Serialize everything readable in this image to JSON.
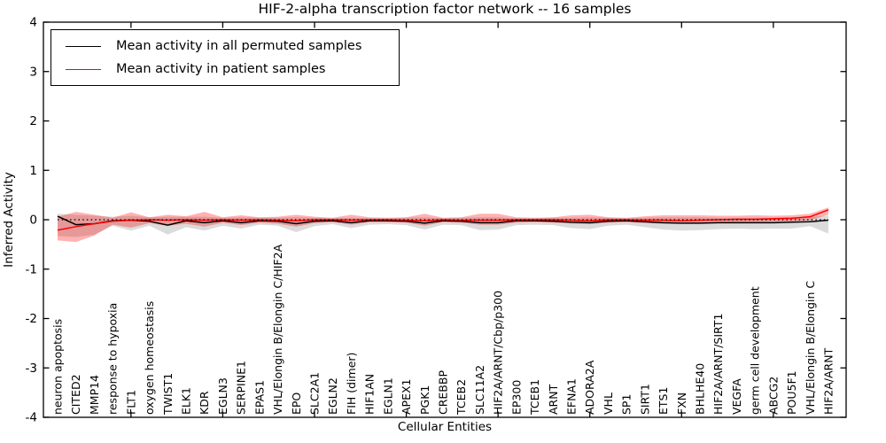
{
  "figure": {
    "title": "HIF-2-alpha transcription factor network -- 16 samples",
    "xlabel": "Cellular Entities",
    "ylabel": "Inferred Activity"
  },
  "legend": {
    "items": [
      {
        "label": "Mean activity in all permuted samples",
        "color": "#000000"
      },
      {
        "label": "Mean activity in patient samples",
        "color": "#ff0000"
      }
    ]
  },
  "chart_data": {
    "type": "line",
    "title": "HIF-2-alpha transcription factor network -- 16 samples",
    "xlabel": "Cellular Entities",
    "ylabel": "Inferred Activity",
    "ylim": [
      -4,
      4
    ],
    "yticks": [
      -4,
      -3,
      -2,
      -1,
      0,
      1,
      2,
      3,
      4
    ],
    "grid": false,
    "legend_position": "upper left",
    "x_major_tick_indices": [
      4,
      9,
      14,
      19,
      24,
      29,
      34,
      39
    ],
    "reference_line": {
      "y": 0,
      "style": "dotted",
      "color": "#000000"
    },
    "categories": [
      "neuron apoptosis",
      "CITED2",
      "MMP14",
      "response to hypoxia",
      "FLT1",
      "oxygen homeostasis",
      "TWIST1",
      "ELK1",
      "KDR",
      "EGLN3",
      "SERPINE1",
      "EPAS1",
      "VHL/Elongin B/Elongin C/HIF2A",
      "EPO",
      "SLC2A1",
      "EGLN2",
      "FIH (dimer)",
      "HIF1AN",
      "EGLN1",
      "APEX1",
      "PGK1",
      "CREBBP",
      "TCEB2",
      "SLC11A2",
      "HIF2A/ARNT/Cbp/p300",
      "EP300",
      "TCEB1",
      "ARNT",
      "EFNA1",
      "ADORA2A",
      "VHL",
      "SP1",
      "SIRT1",
      "ETS1",
      "FXN",
      "BHLHE40",
      "HIF2A/ARNT/SIRT1",
      "VEGFA",
      "germ cell development",
      "ABCG2",
      "POU5F1",
      "VHL/Elongin B/Elongin C",
      "HIF2A/ARNT"
    ],
    "series": [
      {
        "name": "Mean activity in all permuted samples",
        "color": "#000000",
        "style": "solid",
        "band_fill": "rgba(110,110,110,0.25)",
        "values": [
          0.07,
          -0.1,
          -0.08,
          -0.02,
          -0.01,
          -0.03,
          -0.11,
          -0.02,
          -0.06,
          -0.02,
          -0.06,
          -0.02,
          -0.03,
          -0.08,
          -0.03,
          -0.02,
          -0.06,
          -0.02,
          -0.02,
          -0.03,
          -0.07,
          -0.02,
          -0.03,
          -0.06,
          -0.06,
          -0.02,
          -0.02,
          -0.03,
          -0.05,
          -0.06,
          -0.03,
          -0.02,
          -0.04,
          -0.06,
          -0.07,
          -0.07,
          -0.06,
          -0.06,
          -0.06,
          -0.06,
          -0.05,
          -0.04,
          -0.01
        ],
        "band_hi": [
          0.12,
          0.1,
          0.08,
          0.06,
          0.08,
          0.05,
          0.06,
          0.06,
          0.06,
          0.04,
          0.05,
          0.04,
          0.04,
          0.05,
          0.04,
          0.03,
          0.04,
          0.03,
          0.03,
          0.04,
          0.05,
          0.03,
          0.04,
          0.05,
          0.05,
          0.03,
          0.03,
          0.04,
          0.04,
          0.05,
          0.04,
          0.03,
          0.04,
          0.05,
          0.05,
          0.05,
          0.04,
          0.04,
          0.04,
          0.04,
          0.05,
          0.06,
          0.08
        ],
        "band_lo": [
          -0.33,
          -0.35,
          -0.3,
          -0.12,
          -0.22,
          -0.12,
          -0.3,
          -0.15,
          -0.22,
          -0.12,
          -0.18,
          -0.1,
          -0.12,
          -0.25,
          -0.13,
          -0.09,
          -0.17,
          -0.1,
          -0.09,
          -0.11,
          -0.2,
          -0.1,
          -0.11,
          -0.21,
          -0.2,
          -0.11,
          -0.1,
          -0.11,
          -0.17,
          -0.19,
          -0.12,
          -0.1,
          -0.15,
          -0.2,
          -0.22,
          -0.21,
          -0.19,
          -0.18,
          -0.19,
          -0.18,
          -0.18,
          -0.13,
          -0.28
        ]
      },
      {
        "name": "Mean activity in patient samples",
        "color": "#ff0000",
        "style": "solid",
        "band_fill": "rgba(255,0,0,0.30)",
        "values": [
          -0.21,
          -0.14,
          -0.08,
          -0.03,
          -0.01,
          0.0,
          -0.01,
          0.0,
          -0.01,
          0.0,
          -0.01,
          0.0,
          -0.01,
          -0.02,
          0.0,
          0.0,
          -0.01,
          0.0,
          0.0,
          -0.01,
          -0.02,
          0.0,
          -0.01,
          -0.01,
          -0.01,
          0.0,
          0.0,
          0.0,
          -0.01,
          -0.02,
          0.0,
          0.0,
          -0.01,
          -0.01,
          -0.02,
          -0.01,
          0.0,
          0.01,
          0.01,
          0.02,
          0.03,
          0.06,
          0.2
        ],
        "band_hi": [
          0.06,
          0.16,
          0.1,
          0.04,
          0.15,
          0.05,
          0.1,
          0.07,
          0.16,
          0.05,
          0.09,
          0.05,
          0.06,
          0.1,
          0.06,
          0.04,
          0.1,
          0.05,
          0.04,
          0.05,
          0.12,
          0.04,
          0.05,
          0.12,
          0.12,
          0.05,
          0.04,
          0.05,
          0.09,
          0.1,
          0.05,
          0.04,
          0.07,
          0.09,
          0.09,
          0.09,
          0.08,
          0.08,
          0.09,
          0.08,
          0.09,
          0.12,
          0.25
        ],
        "band_lo": [
          -0.42,
          -0.45,
          -0.32,
          -0.1,
          -0.16,
          -0.07,
          -0.12,
          -0.08,
          -0.14,
          -0.06,
          -0.11,
          -0.06,
          -0.08,
          -0.14,
          -0.07,
          -0.05,
          -0.1,
          -0.05,
          -0.05,
          -0.06,
          -0.12,
          -0.05,
          -0.06,
          -0.1,
          -0.1,
          -0.06,
          -0.05,
          -0.06,
          -0.08,
          -0.09,
          -0.06,
          -0.05,
          -0.07,
          -0.08,
          -0.08,
          -0.07,
          -0.06,
          -0.05,
          -0.05,
          -0.04,
          -0.03,
          -0.01,
          0.1
        ]
      }
    ]
  }
}
